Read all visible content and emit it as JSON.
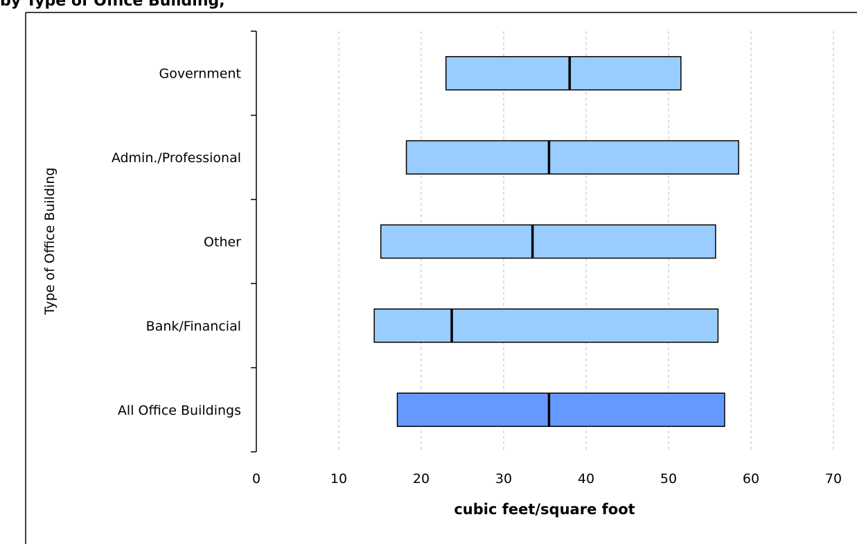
{
  "chart_data": {
    "type": "range_bar",
    "title": "by Type of Office Building,",
    "x_label": "cubic feet/square foot",
    "y_label": "Type of Office Building",
    "categories": [
      "Government",
      "Admin./Professional",
      "Other",
      "Bank/Financial",
      "All Office Buildings"
    ],
    "low": [
      23,
      18.2,
      15.1,
      14.3,
      17.1
    ],
    "median": [
      38,
      35.5,
      33.5,
      23.7,
      35.5
    ],
    "high": [
      51.5,
      58.5,
      55.7,
      56,
      56.8
    ],
    "colors": [
      "#99ccff",
      "#99ccff",
      "#99ccff",
      "#99ccff",
      "#6699ff"
    ],
    "xlim": [
      0,
      70
    ],
    "xticks": [
      0,
      10,
      20,
      30,
      40,
      50,
      60,
      70
    ],
    "grid": true
  }
}
